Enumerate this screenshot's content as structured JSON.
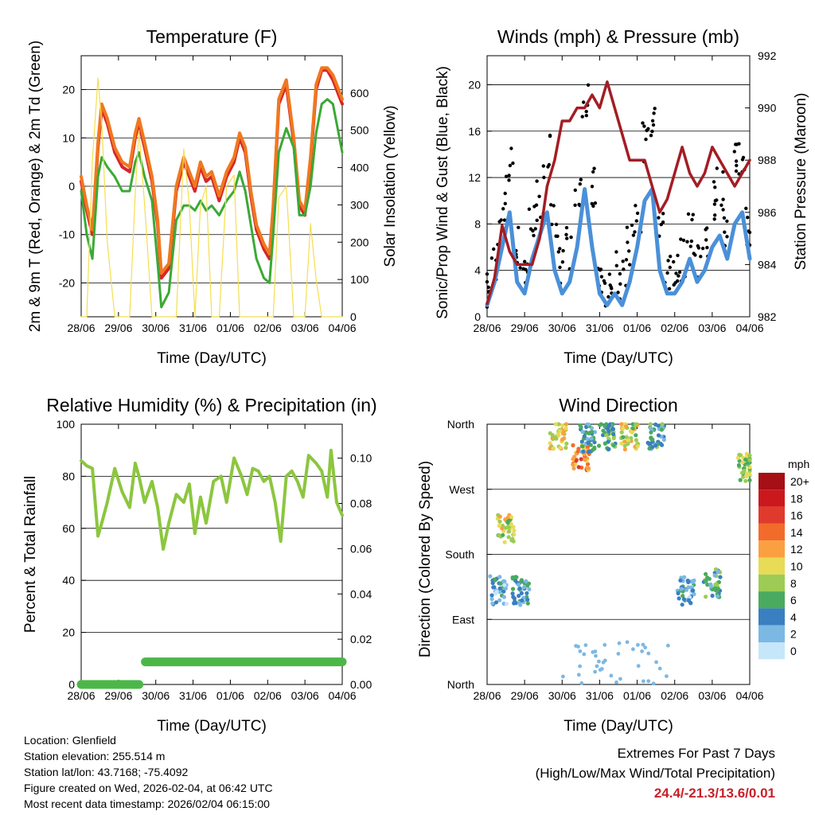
{
  "charts_common": {
    "time_ticks": [
      "28/06",
      "29/06",
      "30/06",
      "31/06",
      "01/06",
      "02/06",
      "03/06",
      "04/06"
    ],
    "xlabel": "Time (Day/UTC)"
  },
  "chart_data": [
    {
      "type": "line",
      "title": "Temperature (F)",
      "xlabel": "Time (Day/UTC)",
      "ylabel_left": "2m & 9m T (Red, Orange) & 2m Td (Green)",
      "ylabel_right": "Solar Insolation (Yellow)",
      "ylim": [
        -27,
        27
      ],
      "yticks": [
        -20,
        -10,
        0,
        10,
        20
      ],
      "y2lim": [
        0,
        700
      ],
      "y2ticks": [
        0,
        100,
        200,
        300,
        400,
        500,
        600
      ],
      "x_days": [
        0,
        0.15,
        0.3,
        0.45,
        0.55,
        0.7,
        0.9,
        1.1,
        1.3,
        1.45,
        1.55,
        1.7,
        1.9,
        2.05,
        2.15,
        2.35,
        2.55,
        2.75,
        2.9,
        3.05,
        3.2,
        3.35,
        3.5,
        3.7,
        3.9,
        4.1,
        4.25,
        4.4,
        4.55,
        4.7,
        4.9,
        5.05,
        5.15,
        5.3,
        5.5,
        5.7,
        5.85,
        6.0,
        6.15,
        6.3,
        6.45,
        6.6,
        6.75,
        6.85,
        7.0
      ],
      "series": [
        {
          "name": "2m T",
          "color": "#d62728",
          "values": [
            1,
            -5,
            -10,
            8,
            16,
            13,
            7,
            4,
            3,
            10,
            13,
            8,
            1,
            -8,
            -19,
            -17,
            -1,
            5,
            2,
            -1,
            4,
            1,
            2,
            -3,
            2,
            5,
            10,
            7,
            -2,
            -9,
            -13,
            -15,
            -5,
            17,
            21,
            9,
            -4,
            -6,
            5,
            20,
            24,
            24,
            22,
            20,
            17
          ]
        },
        {
          "name": "9m T",
          "color": "#f07820",
          "values": [
            2,
            -4,
            -9,
            9,
            17,
            14,
            8,
            5,
            4,
            11,
            14,
            9,
            2,
            -7,
            -18,
            -16,
            0,
            6,
            3,
            0,
            5,
            2,
            3,
            -2,
            3,
            6,
            11,
            8,
            -1,
            -8,
            -12,
            -14,
            -4,
            18,
            22,
            10,
            -3,
            -5,
            6,
            21,
            24.5,
            24.5,
            23,
            21,
            18
          ]
        },
        {
          "name": "2m Td",
          "color": "#3aaa35",
          "values": [
            -1,
            -10,
            -15,
            2,
            6,
            4,
            2,
            -1,
            -1,
            5,
            7,
            2,
            -3,
            -16,
            -25,
            -22,
            -7,
            -4,
            -4,
            -5,
            -3,
            -5,
            -4,
            -6,
            -3,
            -1,
            3,
            -1,
            -8,
            -15,
            -19,
            -20,
            -10,
            7,
            12,
            8,
            -6,
            -6,
            0,
            11,
            17,
            18,
            17,
            13,
            7
          ]
        },
        {
          "name": "Solar",
          "color": "#f5de50",
          "axis": "right",
          "values": [
            0,
            0,
            420,
            640,
            520,
            200,
            0,
            0,
            0,
            330,
            500,
            300,
            0,
            0,
            0,
            0,
            0,
            450,
            300,
            0,
            300,
            350,
            0,
            0,
            350,
            380,
            0,
            0,
            0,
            0,
            0,
            0,
            0,
            320,
            350,
            0,
            0,
            0,
            250,
            100,
            0,
            0,
            0,
            0,
            0
          ]
        }
      ]
    },
    {
      "type": "scatter+line",
      "title": "Winds (mph) & Pressure (mb)",
      "xlabel": "Time (Day/UTC)",
      "ylabel_left": "Sonic/Prop Wind & Gust (Blue, Black)",
      "ylabel_right": "Station Pressure (Maroon)",
      "ylim": [
        0,
        22.5
      ],
      "yticks": [
        0,
        4,
        8,
        12,
        16,
        20
      ],
      "y2lim": [
        982,
        992
      ],
      "y2ticks": [
        982,
        984,
        986,
        988,
        990,
        992
      ],
      "x_days": [
        0,
        0.2,
        0.4,
        0.6,
        0.8,
        1.0,
        1.2,
        1.4,
        1.6,
        1.8,
        2.0,
        2.2,
        2.4,
        2.6,
        2.8,
        3.0,
        3.2,
        3.4,
        3.6,
        3.8,
        4.0,
        4.2,
        4.4,
        4.6,
        4.8,
        5.0,
        5.2,
        5.4,
        5.6,
        5.8,
        6.0,
        6.2,
        6.4,
        6.6,
        6.8,
        7.0
      ],
      "series": [
        {
          "name": "Sonic/Prop Wind",
          "color": "#4a90d9",
          "values": [
            1,
            3,
            6,
            9,
            3,
            2,
            5,
            7,
            9,
            4,
            2,
            3,
            6,
            11,
            6,
            2,
            1,
            2,
            1,
            3,
            6,
            10,
            11,
            4,
            2,
            2,
            3,
            5,
            3,
            4,
            6,
            7,
            5,
            8,
            9,
            5
          ]
        },
        {
          "name": "Gust",
          "color": "#000000",
          "values": [
            2,
            5,
            9,
            13,
            6,
            4,
            8,
            10,
            14,
            8,
            4,
            6,
            10,
            18,
            11,
            4,
            2,
            4,
            3,
            6,
            9,
            15,
            16,
            7,
            4,
            4,
            5,
            8,
            5,
            7,
            10,
            11,
            8,
            13,
            14,
            8
          ]
        },
        {
          "name": "Station Pressure",
          "color": "#a31d24",
          "axis": "right",
          "values": [
            982.5,
            983.5,
            985.5,
            984.5,
            984,
            984,
            984,
            985,
            987,
            988,
            989.5,
            989.5,
            990,
            990,
            990.5,
            990,
            991,
            990,
            989,
            988,
            988,
            988,
            987,
            986,
            986.5,
            987.5,
            988.5,
            987.5,
            987,
            987.5,
            988.5,
            988,
            987.5,
            987,
            987.5,
            988
          ]
        }
      ]
    },
    {
      "type": "line",
      "title": "Relative Humidity (%) & Precipitation (in)",
      "xlabel": "Time (Day/UTC)",
      "ylabel_left": "Percent & Total Rainfall",
      "ylim": [
        0,
        100
      ],
      "yticks": [
        0,
        20,
        40,
        60,
        80,
        100
      ],
      "y2lim": [
        0,
        0.115
      ],
      "y2ticks": [
        "0.00",
        "0.02",
        "0.04",
        "0.06",
        "0.08",
        "0.10"
      ],
      "x_days": [
        0,
        0.15,
        0.3,
        0.45,
        0.55,
        0.7,
        0.9,
        1.1,
        1.3,
        1.45,
        1.55,
        1.7,
        1.9,
        2.05,
        2.2,
        2.35,
        2.55,
        2.75,
        2.9,
        3.05,
        3.2,
        3.35,
        3.55,
        3.75,
        3.9,
        4.1,
        4.3,
        4.45,
        4.6,
        4.75,
        4.9,
        5.05,
        5.2,
        5.35,
        5.5,
        5.65,
        5.8,
        5.95,
        6.1,
        6.3,
        6.45,
        6.6,
        6.7,
        6.85,
        7.0
      ],
      "series": [
        {
          "name": "Relative Humidity",
          "color": "#8cc63f",
          "values": [
            86,
            84,
            83,
            57,
            62,
            70,
            83,
            74,
            68,
            85,
            80,
            70,
            78,
            68,
            52,
            62,
            73,
            70,
            77,
            58,
            72,
            62,
            78,
            80,
            70,
            87,
            80,
            73,
            83,
            82,
            78,
            80,
            70,
            55,
            80,
            82,
            78,
            72,
            88,
            85,
            82,
            72,
            90,
            70,
            65
          ]
        },
        {
          "name": "Total Precipitation",
          "color": "#4cb748",
          "axis": "right",
          "x": [
            0,
            1.55,
            1.55,
            7.0
          ],
          "values": [
            0,
            0,
            0.01,
            0.01
          ]
        }
      ]
    },
    {
      "type": "scatter",
      "title": "Wind Direction",
      "xlabel": "Time (Day/UTC)",
      "ylabel": "Direction (Colored By Speed)",
      "yticks": [
        "North",
        "East",
        "South",
        "West",
        "North"
      ],
      "color_legend_title": "mph",
      "color_legend_labels": [
        "20+",
        "18",
        "16",
        "14",
        "12",
        "10",
        "8",
        "6",
        "4",
        "2",
        "0"
      ],
      "color_legend_colors": [
        "#a50f15",
        "#cb181d",
        "#e03a2c",
        "#f26b2b",
        "#fba040",
        "#e8db55",
        "#9ccc55",
        "#4aaa5f",
        "#3a7fc0",
        "#7cb8e4",
        "#c6e6fa"
      ],
      "clusters": [
        {
          "day": 0.3,
          "dir_deg": 130,
          "speed": 3
        },
        {
          "day": 0.5,
          "dir_deg": 215,
          "speed": 9
        },
        {
          "day": 0.9,
          "dir_deg": 130,
          "speed": 4
        },
        {
          "day": 1.9,
          "dir_deg": 345,
          "speed": 10
        },
        {
          "day": 2.5,
          "dir_deg": 315,
          "speed": 13
        },
        {
          "day": 2.7,
          "dir_deg": 340,
          "speed": 4
        },
        {
          "day": 3.2,
          "dir_deg": 345,
          "speed": 6
        },
        {
          "day": 3.8,
          "dir_deg": 345,
          "speed": 9
        },
        {
          "day": 4.5,
          "dir_deg": 345,
          "speed": 5
        },
        {
          "day": 5.3,
          "dir_deg": 130,
          "speed": 3
        },
        {
          "day": 6.0,
          "dir_deg": 140,
          "speed": 5
        },
        {
          "day": 6.9,
          "dir_deg": 300,
          "speed": 8
        }
      ]
    }
  ],
  "info": {
    "location": "Location: Glenfield",
    "elevation": "Station elevation: 255.514 m",
    "latlon": "Station lat/lon: 43.7168; -75.4092",
    "created": "Figure created on Wed, 2026-02-04, at 06:42 UTC",
    "recent": "Most recent data timestamp: 2026/02/04 06:15:00"
  },
  "extremes": {
    "line1": "Extremes For Past 7 Days",
    "line2": "(High/Low/Max Wind/Total Precipitation)",
    "values": "24.4/-21.3/13.6/0.01"
  }
}
